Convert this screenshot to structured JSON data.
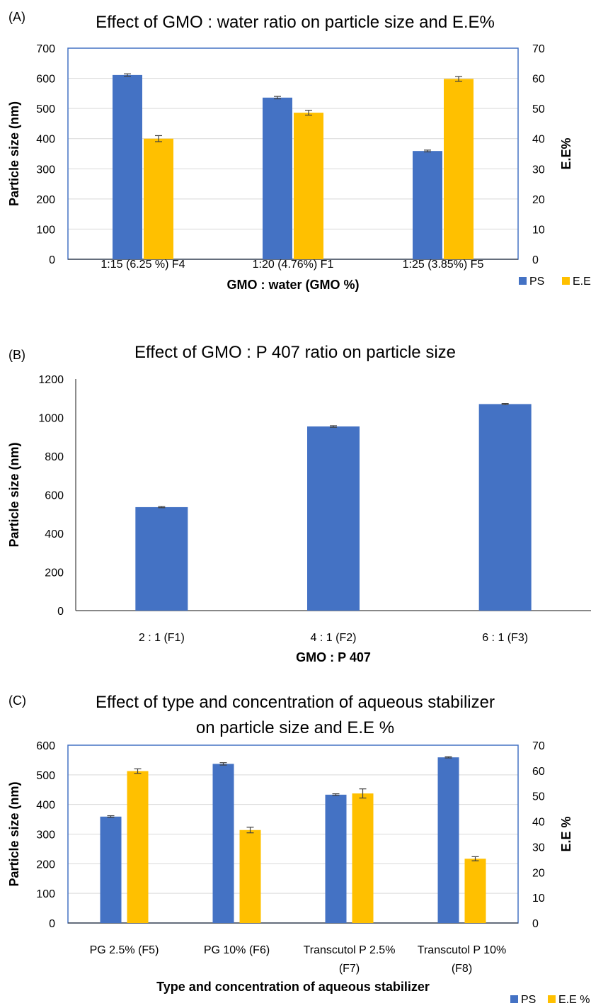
{
  "colors": {
    "ps": "#4472C4",
    "ee": "#FFC000",
    "grid": "#D9D9D9",
    "error": "#404040",
    "plot_border": "#4472C4"
  },
  "chart_data": [
    {
      "panel_label": "(A)",
      "type": "bar",
      "title": [
        "Effect of GMO : water ratio on particle size and E.E%"
      ],
      "categories": [
        [
          "1:15 (6.25 %) F4"
        ],
        [
          "1:20 (4.76%) F1"
        ],
        [
          "1:25 (3.85%) F5"
        ]
      ],
      "xlabel": "GMO : water (GMO %)",
      "ylabel": "Particle size (nm)",
      "y2label": "E.E%",
      "ylim": [
        0,
        700
      ],
      "yticks": [
        0,
        100,
        200,
        300,
        400,
        500,
        600,
        700
      ],
      "y2lim": [
        0,
        70
      ],
      "y2ticks": [
        0,
        10,
        20,
        30,
        40,
        50,
        60,
        70
      ],
      "grid": true,
      "legend_position": "bottom-right",
      "series": [
        {
          "name": "PS",
          "axis": "left",
          "color": "#4472C4",
          "values": [
            611,
            536,
            359
          ],
          "errors": [
            4,
            4,
            3
          ]
        },
        {
          "name": "E.E %",
          "axis": "right",
          "color": "#FFC000",
          "values": [
            40,
            48.6,
            59.8
          ],
          "errors": [
            1,
            0.8,
            0.8
          ]
        }
      ]
    },
    {
      "panel_label": "(B)",
      "type": "bar",
      "title": [
        "Effect of GMO : P 407 ratio on particle size"
      ],
      "categories": [
        [
          "2 : 1 (F1)"
        ],
        [
          "4 : 1 (F2)"
        ],
        [
          "6 : 1 (F3)"
        ]
      ],
      "xlabel": "GMO : P 407",
      "ylabel": "Particle size (nm)",
      "ylim": [
        0,
        1200
      ],
      "yticks": [
        0,
        200,
        400,
        600,
        800,
        1000,
        1200
      ],
      "grid": false,
      "series": [
        {
          "axis": "left",
          "color": "#4472C4",
          "values": [
            536,
            954,
            1070
          ],
          "errors": [
            3,
            4,
            3
          ]
        }
      ]
    },
    {
      "panel_label": "(C)",
      "type": "bar",
      "title": [
        "Effect of type and concentration of aqueous stabilizer",
        "on particle size and E.E %"
      ],
      "categories": [
        [
          "PG 2.5% (F5)"
        ],
        [
          "PG 10% (F6)"
        ],
        [
          "Transcutol P 2.5%",
          "(F7)"
        ],
        [
          "Transcutol P 10%",
          "(F8)"
        ]
      ],
      "xlabel": "Type and concentration of aqueous stabilizer",
      "ylabel": "Particle size (nm)",
      "y2label": "E.E %",
      "ylim": [
        0,
        600
      ],
      "yticks": [
        0,
        100,
        200,
        300,
        400,
        500,
        600
      ],
      "y2lim": [
        0,
        70
      ],
      "y2ticks": [
        0,
        10,
        20,
        30,
        40,
        50,
        60,
        70
      ],
      "grid": true,
      "legend_position": "bottom-right",
      "series": [
        {
          "name": "PS",
          "axis": "left",
          "color": "#4472C4",
          "values": [
            359,
            537,
            433,
            559
          ],
          "errors": [
            3,
            4,
            3,
            2
          ]
        },
        {
          "name": "E.E %",
          "axis": "right",
          "color": "#FFC000",
          "values": [
            59.8,
            36.6,
            51,
            25.3
          ],
          "errors": [
            0.9,
            1.1,
            1.8,
            0.8
          ]
        }
      ]
    }
  ]
}
